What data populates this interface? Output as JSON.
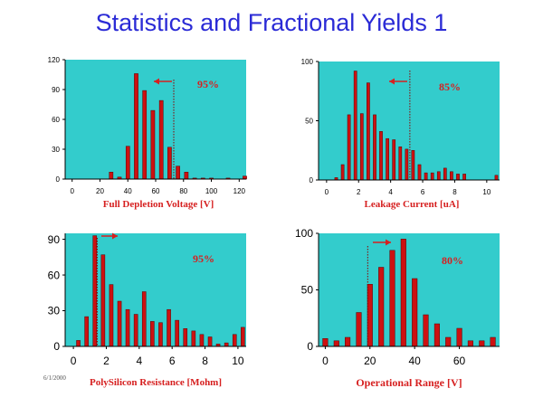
{
  "slide": {
    "title": "Statistics and Fractional Yields 1",
    "date": "6/1/2000"
  },
  "chart_data": [
    {
      "type": "bar",
      "xlabel": "Full Depletion Voltage [V]",
      "annotation": "95%",
      "arrow_direction": "left",
      "cut": 73,
      "x": [
        28,
        34,
        40,
        46,
        52,
        58,
        64,
        70,
        76,
        82,
        88,
        94,
        100,
        106,
        112,
        118,
        124
      ],
      "values": [
        7,
        2,
        33,
        106,
        89,
        69,
        79,
        32,
        13,
        7,
        1,
        1,
        1,
        0,
        1,
        0,
        3
      ],
      "xlim": [
        -5,
        125
      ],
      "ylim": [
        0,
        120
      ],
      "xticks": [
        0,
        20,
        40,
        60,
        80,
        100,
        120
      ],
      "yticks": [
        0,
        30,
        60,
        90,
        120
      ],
      "bg": "#33cccc",
      "bar_color": "#cc1111"
    },
    {
      "type": "bar",
      "xlabel": "Leakage Current [uA]",
      "annotation": "85%",
      "arrow_direction": "left",
      "cut": 5.2,
      "x": [
        0.6,
        1.0,
        1.4,
        1.8,
        2.2,
        2.6,
        3.0,
        3.4,
        3.8,
        4.2,
        4.6,
        5.0,
        5.4,
        5.8,
        6.2,
        6.6,
        7.0,
        7.4,
        7.8,
        8.2,
        8.6,
        10.6
      ],
      "values": [
        2,
        13,
        55,
        92,
        56,
        82,
        55,
        41,
        35,
        34,
        28,
        26,
        25,
        13,
        6,
        6,
        7,
        10,
        7,
        5,
        5,
        4
      ],
      "xlim": [
        -0.5,
        10.8
      ],
      "ylim": [
        0,
        100
      ],
      "xticks": [
        0,
        2,
        4,
        6,
        8,
        10
      ],
      "yticks": [
        0,
        50,
        100
      ],
      "bg": "#33cccc",
      "bar_color": "#cc1111"
    },
    {
      "type": "bar",
      "xlabel": "PolySilicon Resistance [Mohm]",
      "annotation": "95%",
      "arrow_direction": "right",
      "cut": 1.45,
      "x": [
        0.3,
        0.8,
        1.3,
        1.8,
        2.3,
        2.8,
        3.3,
        3.8,
        4.3,
        4.8,
        5.3,
        5.8,
        6.3,
        6.8,
        7.3,
        7.8,
        8.3,
        8.8,
        9.3,
        9.8,
        10.3
      ],
      "values": [
        5,
        25,
        93,
        77,
        52,
        38,
        31,
        27,
        46,
        21,
        20,
        31,
        22,
        15,
        13,
        10,
        8,
        2,
        3,
        10,
        16
      ],
      "xlim": [
        -0.5,
        10.5
      ],
      "ylim": [
        0,
        95
      ],
      "xticks": [
        0,
        2,
        4,
        6,
        8,
        10
      ],
      "yticks": [
        0,
        30,
        60,
        90
      ],
      "bg": "#33cccc",
      "bar_color": "#cc1111"
    },
    {
      "type": "bar",
      "xlabel": "Operational Range [V]",
      "annotation": "80%",
      "arrow_direction": "right",
      "cut": 19,
      "x": [
        0,
        5,
        10,
        15,
        20,
        25,
        30,
        35,
        40,
        45,
        50,
        55,
        60,
        65,
        70,
        75
      ],
      "values": [
        7,
        5,
        8,
        30,
        55,
        70,
        85,
        95,
        60,
        28,
        20,
        8,
        16,
        5,
        5,
        8
      ],
      "xlim": [
        -3,
        78
      ],
      "ylim": [
        0,
        100
      ],
      "xticks": [
        0,
        20,
        40,
        60
      ],
      "yticks": [
        0,
        50,
        100
      ],
      "bg": "#33cccc",
      "bar_color": "#cc1111"
    }
  ]
}
